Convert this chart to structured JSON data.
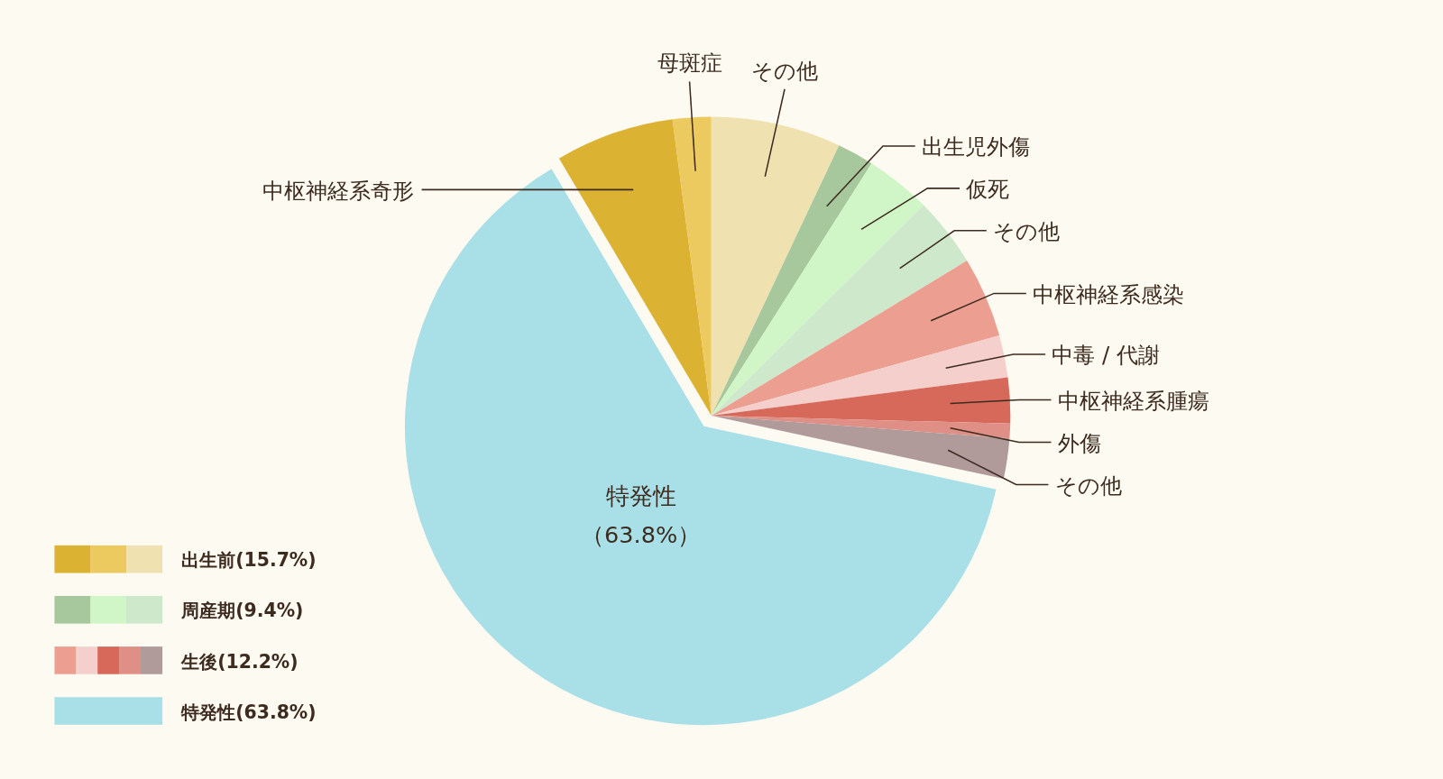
{
  "chart_data": {
    "type": "pie",
    "categories": [
      "中枢神経系奇形",
      "母斑症",
      "その他",
      "出生児外傷",
      "仮死",
      "その他",
      "中枢神経系感染",
      "中毒 / 代謝",
      "中枢神経系腫瘍",
      "外傷",
      "その他",
      "特発性"
    ],
    "values": [
      6.5,
      2.1,
      7.1,
      2.0,
      3.6,
      3.8,
      4.4,
      2.3,
      2.5,
      0.8,
      2.2,
      63.8
    ],
    "colors": [
      "#dbb232",
      "#ecca60",
      "#f0e2b0",
      "#a6c89c",
      "#d0f6c8",
      "#cde8ca",
      "#ec9e90",
      "#f5cfcb",
      "#d6695a",
      "#e08f86",
      "#b09a9a",
      "#a9dfe7"
    ],
    "value_labels": [
      null,
      null,
      null,
      null,
      null,
      null,
      null,
      null,
      null,
      null,
      null,
      "（63.8%）"
    ],
    "annotations": [
      "出生前(15.7%)",
      "周産期(9.4%)",
      "生後(12.2%)",
      "特発性(63.8%)"
    ]
  }
}
